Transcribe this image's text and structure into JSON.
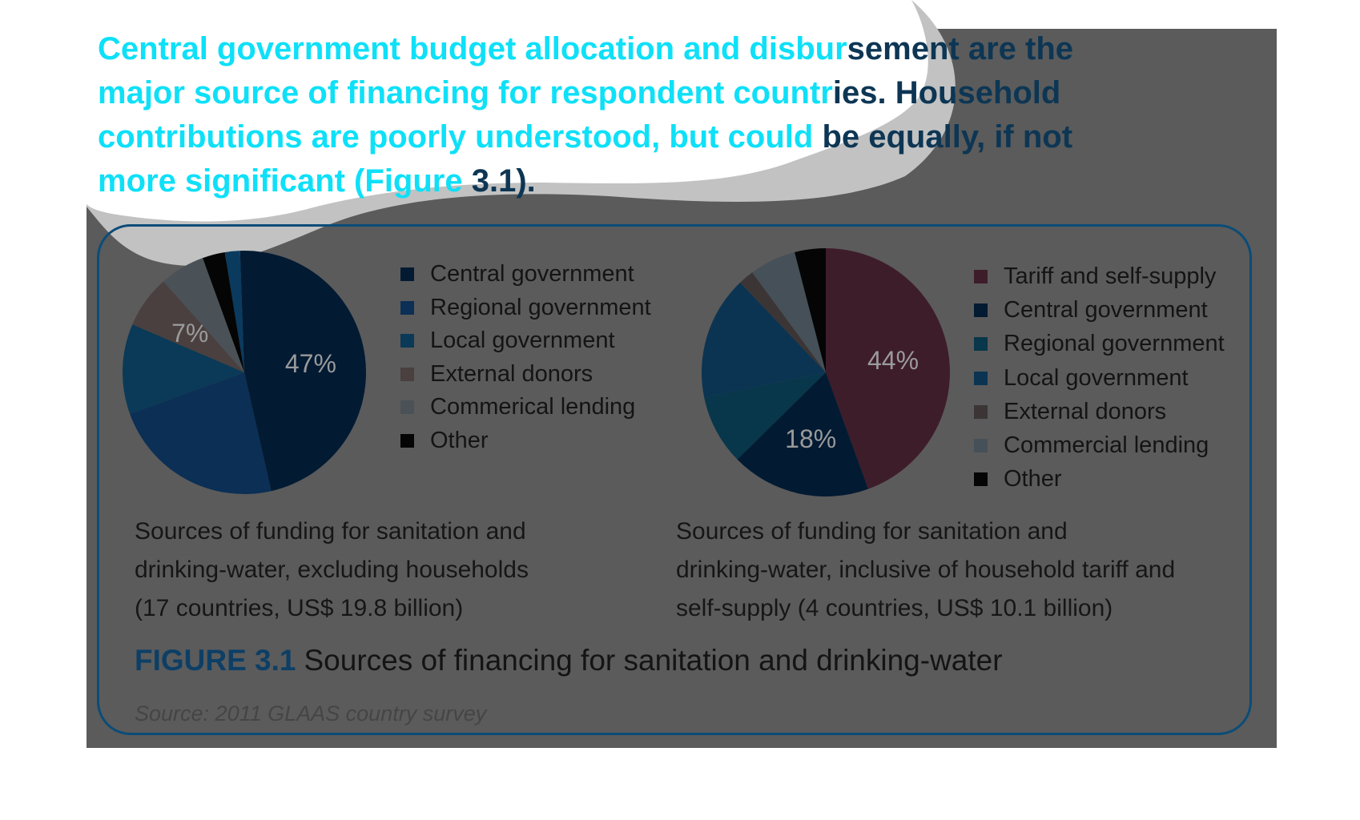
{
  "headline": {
    "lines": [
      {
        "cyan": "Central government budget allocation and disbur",
        "dark": "sement are the"
      },
      {
        "cyan": "major source of financing for respondent countr",
        "dark": "ies. Household"
      },
      {
        "cyan": "contributions are poorly understood, but could ",
        "dark": "be equally, if not"
      },
      {
        "cyan": "more significant (Figure ",
        "dark": "3.1)."
      }
    ]
  },
  "figure": {
    "number": "FIGURE 3.1",
    "title": "Sources of financing for sanitation and drinking-water",
    "source": "Source: 2011 GLAAS country survey"
  },
  "colors": {
    "background_panel": "#5b5b5b",
    "frame_border": "#0b4c78",
    "headline_cyan": "#0ee0f8",
    "headline_dark": "#0d3654"
  },
  "chart_data": [
    {
      "type": "pie",
      "title": "",
      "caption": [
        "Sources of funding for sanitation and",
        "drinking-water, excluding households",
        "(17 countries, US$ 19.8 billion)"
      ],
      "legend_position": "right",
      "slices": [
        {
          "label": "Central government",
          "value": 47,
          "color": "#031a33",
          "data_label": "47%"
        },
        {
          "label": "Regional government",
          "value": 23,
          "color": "#0b2f55",
          "data_label": ""
        },
        {
          "label": "Local government",
          "value": 12,
          "color": "#0a3a57",
          "data_label": ""
        },
        {
          "label": "External donors",
          "value": 7,
          "color": "#4a403f",
          "data_label": "7%"
        },
        {
          "label": "Commerical lending",
          "value": 6,
          "color": "#4a5258",
          "data_label": ""
        },
        {
          "label": "Other",
          "value": 3,
          "color": "#050505",
          "data_label": ""
        }
      ],
      "extra_slice": {
        "value": 2,
        "color": "#0a3a5e"
      }
    },
    {
      "type": "pie",
      "title": "",
      "caption": [
        "Sources of funding for sanitation and",
        "drinking-water, inclusive of household tariff and",
        "self-supply (4 countries, US$ 10.1 billion)"
      ],
      "legend_position": "right",
      "slices": [
        {
          "label": "Tariff and self-supply",
          "value": 44,
          "color": "#3e1d2b",
          "data_label": "44%"
        },
        {
          "label": "Central government",
          "value": 18,
          "color": "#021a32",
          "data_label": "18%"
        },
        {
          "label": "Regional government",
          "value": 9,
          "color": "#08364a",
          "data_label": ""
        },
        {
          "label": "Local government",
          "value": 16,
          "color": "#0b3452",
          "data_label": ""
        },
        {
          "label": "External donors",
          "value": 2,
          "color": "#3c3535",
          "data_label": ""
        },
        {
          "label": "Commercial lending",
          "value": 6,
          "color": "#465058",
          "data_label": ""
        },
        {
          "label": "Other",
          "value": 4,
          "color": "#050505",
          "data_label": ""
        }
      ]
    }
  ]
}
